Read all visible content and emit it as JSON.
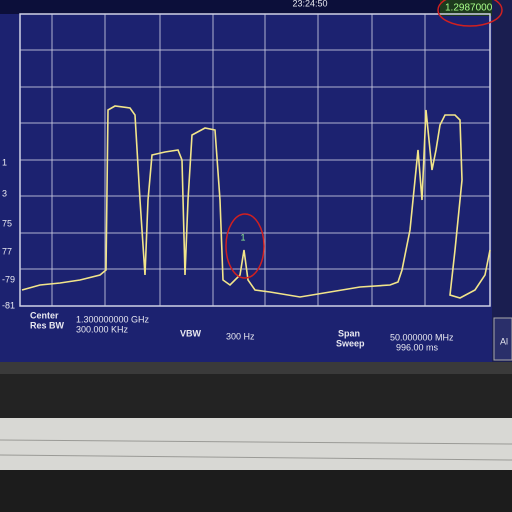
{
  "header": {
    "time": "23:24:50",
    "marker_readout": "1.2987000"
  },
  "y_axis_labels": [
    "1",
    "3",
    "75",
    "77",
    "-79",
    "-81"
  ],
  "marker_number": "1",
  "footer": {
    "center_label": "Center",
    "center_value": "1.300000000 GHz",
    "res_bw_label": "Res BW",
    "res_bw_value": "300.000 KHz",
    "vbw_label": "VBW",
    "vbw_value": "300 Hz",
    "span_label": "Span",
    "span_value": "50.000000 MHz",
    "sweep_label": "Sweep",
    "sweep_value": "996.00 ms"
  },
  "softkey": "Al"
}
